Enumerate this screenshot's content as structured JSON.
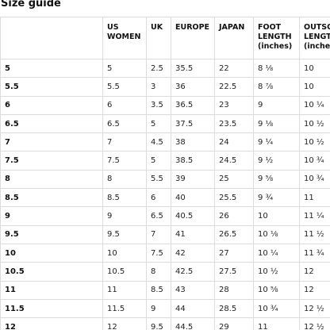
{
  "page": {
    "title": "Size guide"
  },
  "table": {
    "headers": [
      "",
      "US WOMEN",
      "UK",
      "EUROPE",
      "JAPAN",
      "FOOT LENGTH (inches)",
      "OUTSOLE LENGTH (inches)"
    ],
    "rows": [
      [
        "5",
        "5",
        "2.5",
        "35.5",
        "22",
        "8 ⅛",
        "10"
      ],
      [
        "5.5",
        "5.5",
        "3",
        "36",
        "22.5",
        "8 ⅞",
        "10"
      ],
      [
        "6",
        "6",
        "3.5",
        "36.5",
        "23",
        "9",
        "10 ¼"
      ],
      [
        "6.5",
        "6.5",
        "5",
        "37.5",
        "23.5",
        "9 ⅛",
        "10 ½"
      ],
      [
        "7",
        "7",
        "4.5",
        "38",
        "24",
        "9 ¼",
        "10 ½"
      ],
      [
        "7.5",
        "7.5",
        "5",
        "38.5",
        "24.5",
        "9 ½",
        "10 ¾"
      ],
      [
        "8",
        "8",
        "5.5",
        "39",
        "25",
        "9 ⅝",
        "10 ¾"
      ],
      [
        "8.5",
        "8.5",
        "6",
        "40",
        "25.5",
        "9 ¾",
        "11"
      ],
      [
        "9",
        "9",
        "6.5",
        "40.5",
        "26",
        "10",
        "11 ¼"
      ],
      [
        "9.5",
        "9.5",
        "7",
        "41",
        "26.5",
        "10 ⅛",
        "11 ½"
      ],
      [
        "10",
        "10",
        "7.5",
        "42",
        "27",
        "10 ¼",
        "11 ¾"
      ],
      [
        "10.5",
        "10.5",
        "8",
        "42.5",
        "27.5",
        "10 ½",
        "12"
      ],
      [
        "11",
        "11",
        "8.5",
        "43",
        "28",
        "10 ⅝",
        "12"
      ],
      [
        "11.5",
        "11.5",
        "9",
        "44",
        "28.5",
        "10 ¾",
        "12 ½"
      ],
      [
        "12",
        "12",
        "9.5",
        "44.5",
        "29",
        "11",
        "12 ½"
      ]
    ]
  }
}
